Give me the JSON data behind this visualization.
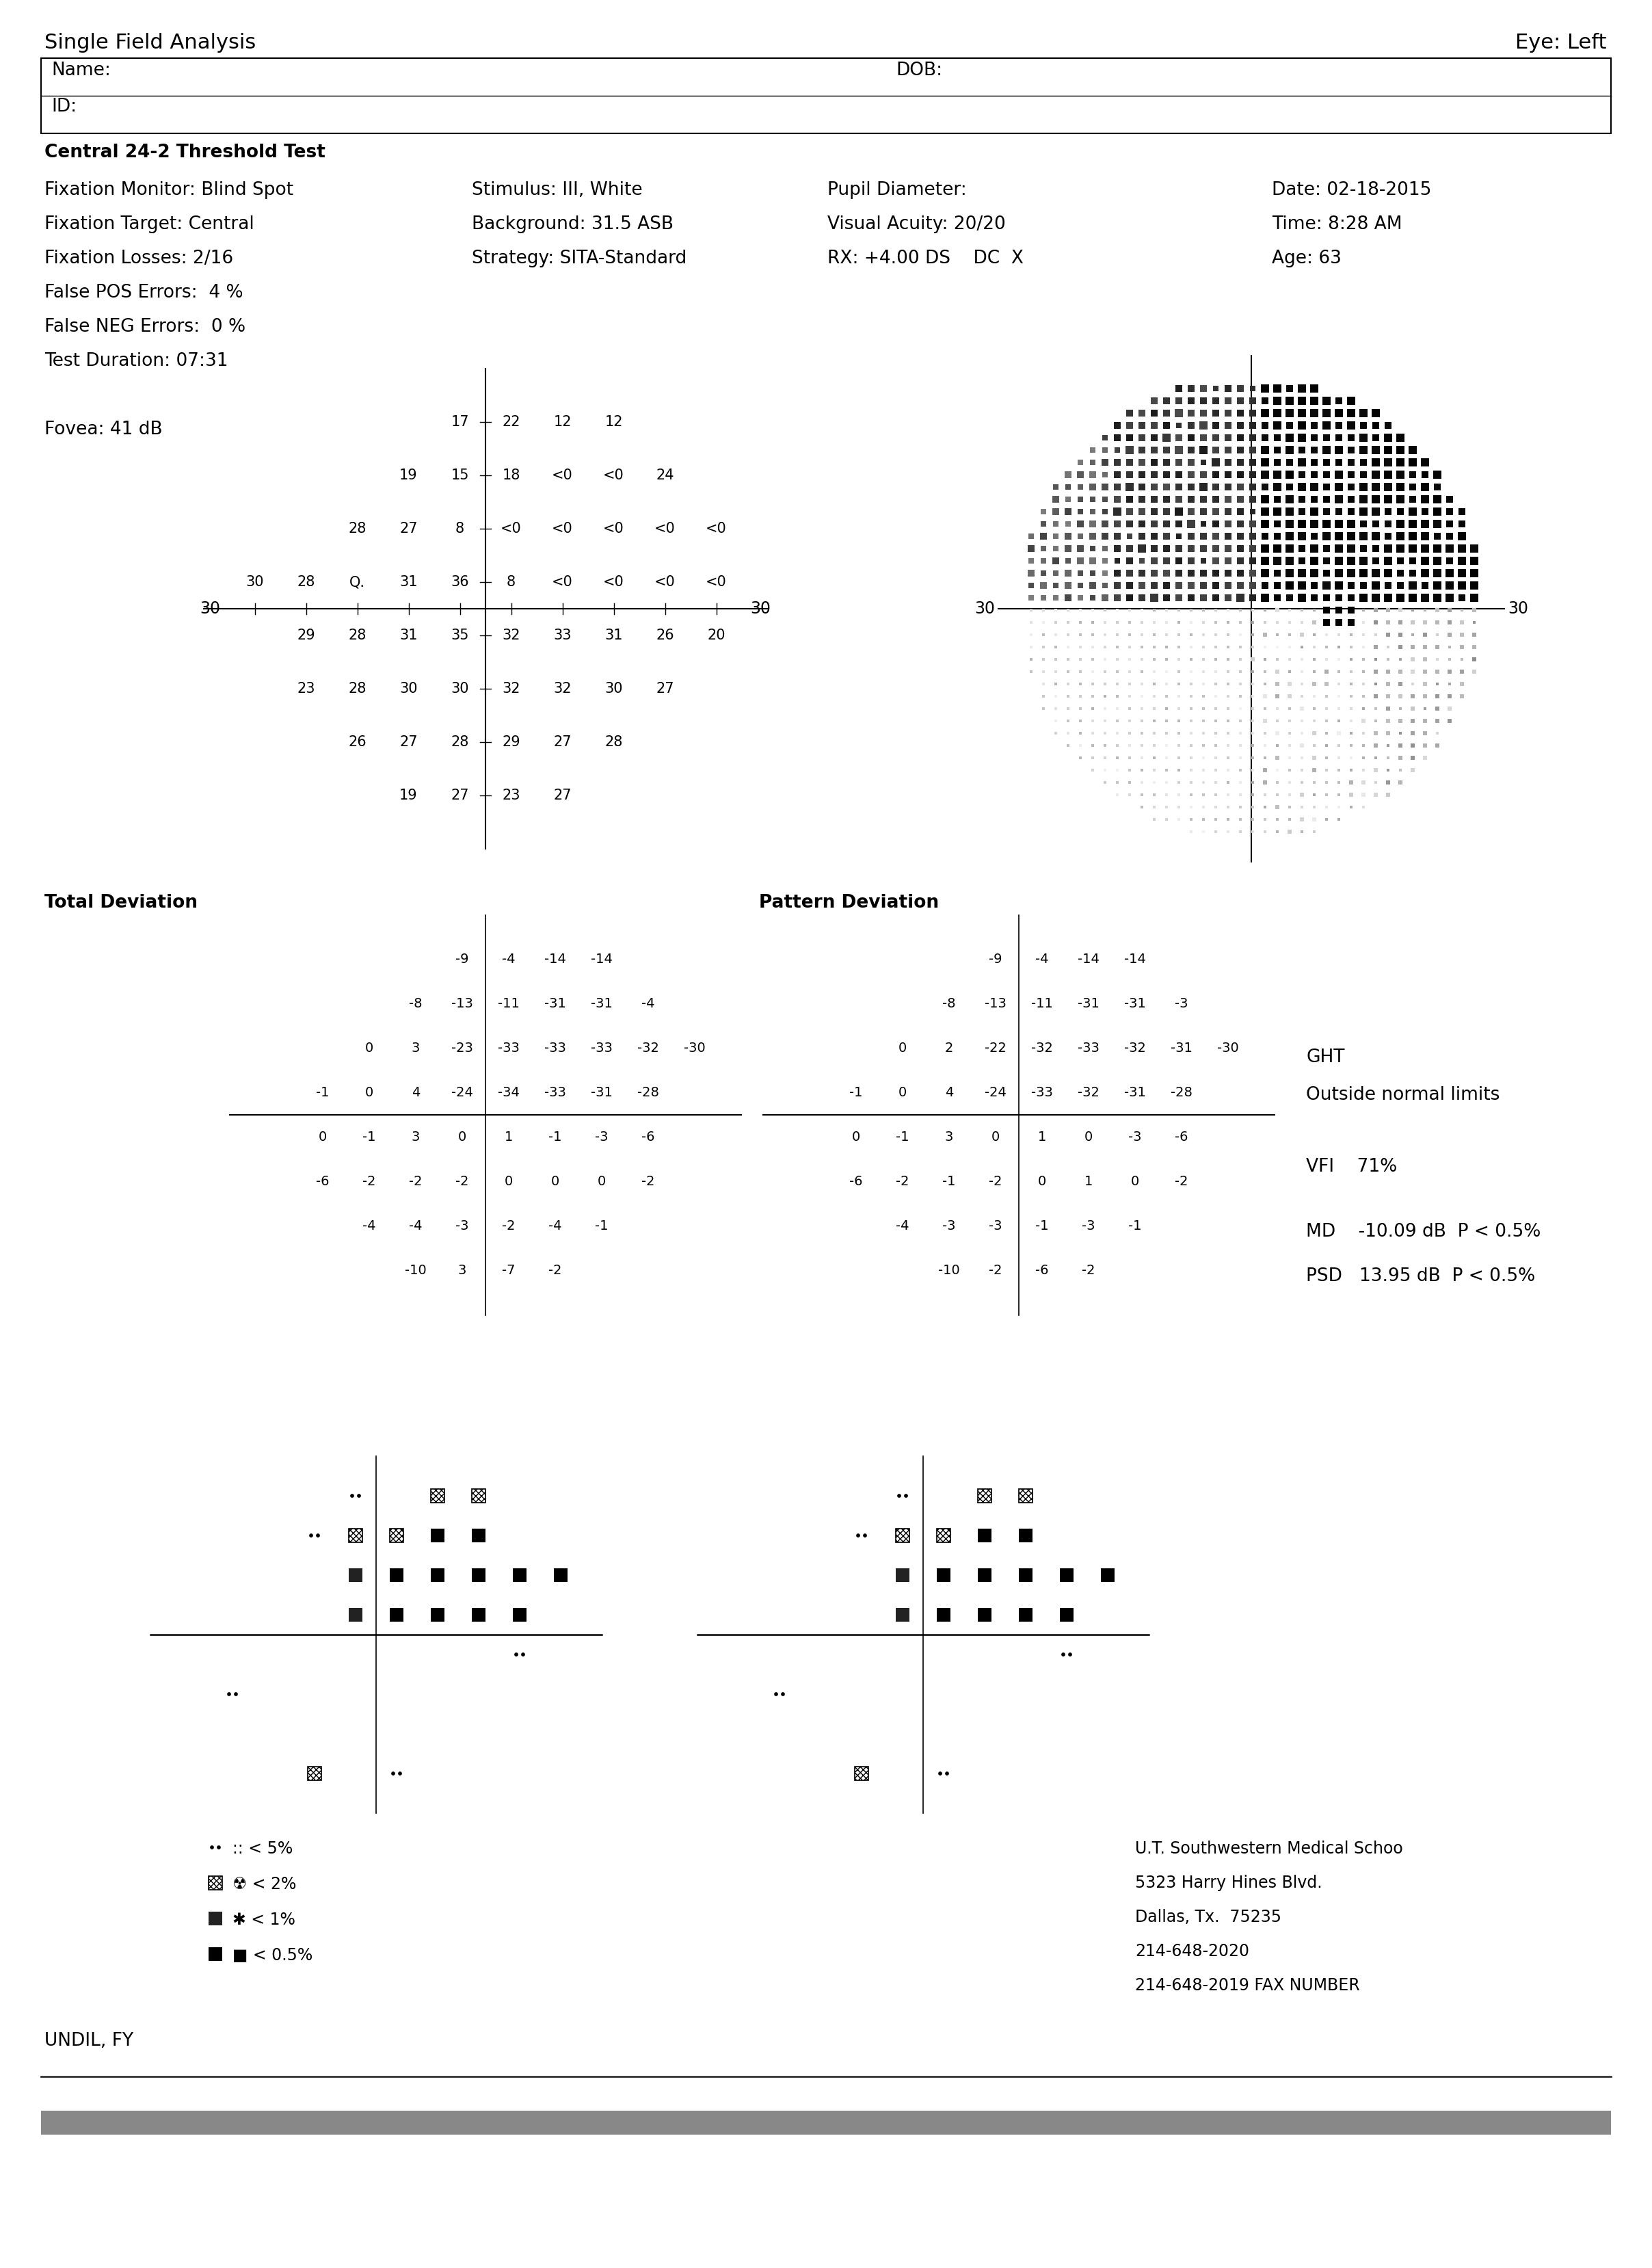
{
  "title_left": "Single Field Analysis",
  "title_right": "Eye: Left",
  "name_label": "Name:",
  "id_label": "ID:",
  "dob_label": "DOB:",
  "test_type": "Central 24-2 Threshold Test",
  "fix_monitor": "Fixation Monitor: Blind Spot",
  "fix_target": "Fixation Target: Central",
  "fix_losses": "Fixation Losses: 2/16",
  "false_pos": "False POS Errors:  4 %",
  "false_neg": "False NEG Errors:  0 %",
  "test_dur": "Test Duration: 07:31",
  "fovea": "Fovea: 41 dB",
  "stimulus": "Stimulus: III, White",
  "background": "Background: 31.5 ASB",
  "strategy": "Strategy: SITA-Standard",
  "pupil": "Pupil Diameter:",
  "visual_acuity": "Visual Acuity: 20/20",
  "rx": "RX: +4.00 DS    DC  X",
  "date": "Date: 02-18-2015",
  "time": "Time: 8:28 AM",
  "age": "Age: 63",
  "ght": "GHT",
  "ght_result": "Outside normal limits",
  "vfi": "VFI    71%",
  "md": "MD    -10.09 dB  P < 0.5%",
  "psd": "PSD   13.95 dB  P < 0.5%",
  "institution": "U.T. Southwestern Medical Schoo",
  "address1": "5323 Harry Hines Blvd.",
  "address2": "Dallas, Tx.  75235",
  "phone1": "214-648-2020",
  "phone2": "214-648-2019 FAX NUMBER",
  "patient_id": "UNDIL, FY",
  "thresh_rows": [
    [
      17,
      22,
      12,
      12
    ],
    [
      19,
      15,
      18,
      "<0",
      "<0",
      24
    ],
    [
      28,
      27,
      8,
      "<0",
      "<0",
      "<0",
      "<0",
      "<0"
    ],
    [
      30,
      28,
      "Q.",
      31,
      36,
      8,
      "<0",
      "<0",
      "<0",
      "<0"
    ],
    [
      29,
      28,
      31,
      35,
      32,
      33,
      31,
      26,
      20
    ],
    [
      23,
      28,
      30,
      30,
      32,
      32,
      30,
      27
    ],
    [
      26,
      27,
      28,
      29,
      27,
      28
    ],
    [
      19,
      27,
      23,
      27
    ]
  ],
  "thresh_cols": [
    [
      4,
      5,
      6,
      7
    ],
    [
      3,
      4,
      5,
      6,
      7,
      8
    ],
    [
      2,
      3,
      4,
      5,
      6,
      7,
      8,
      9
    ],
    [
      0,
      1,
      2,
      3,
      4,
      5,
      6,
      7,
      8,
      9
    ],
    [
      1,
      2,
      3,
      4,
      5,
      6,
      7,
      8,
      9
    ],
    [
      1,
      2,
      3,
      4,
      5,
      6,
      7,
      8
    ],
    [
      2,
      3,
      4,
      5,
      6,
      7
    ],
    [
      3,
      4,
      5,
      6
    ]
  ],
  "td_rows": [
    [
      -9,
      -4,
      -14,
      -14
    ],
    [
      -8,
      -13,
      -11,
      -31,
      -31,
      -4
    ],
    [
      0,
      3,
      -23,
      -33,
      -33,
      -33,
      -32,
      -30
    ],
    [
      -1,
      0,
      4,
      -24,
      -34,
      -33,
      -31,
      -28
    ],
    [
      0,
      -1,
      3,
      0,
      1,
      -1,
      -3,
      -6
    ],
    [
      -6,
      -2,
      -2,
      -2,
      0,
      0,
      0,
      -2
    ],
    [
      -4,
      -4,
      -3,
      -2,
      -4,
      -1
    ],
    [
      -10,
      3,
      -7,
      -2
    ]
  ],
  "pd_rows": [
    [
      -9,
      -4,
      -14,
      -14
    ],
    [
      -8,
      -13,
      -11,
      -31,
      -31,
      -3
    ],
    [
      0,
      2,
      -22,
      -32,
      -33,
      -32,
      -31,
      -30
    ],
    [
      -1,
      0,
      4,
      -24,
      -33,
      -32,
      -31,
      -28
    ],
    [
      0,
      -1,
      3,
      0,
      1,
      0,
      -3,
      -6
    ],
    [
      -6,
      -2,
      -1,
      -2,
      0,
      1,
      0,
      -2
    ],
    [
      -4,
      -3,
      -3,
      -1,
      -3,
      -1
    ],
    [
      -10,
      -2,
      -6,
      -2
    ]
  ],
  "dev_cols": [
    [
      4,
      5,
      6,
      7
    ],
    [
      3,
      4,
      5,
      6,
      7,
      8
    ],
    [
      2,
      3,
      4,
      5,
      6,
      7,
      8,
      9
    ],
    [
      1,
      2,
      3,
      4,
      5,
      6,
      7,
      8
    ],
    [
      1,
      2,
      3,
      4,
      5,
      6,
      7,
      8
    ],
    [
      1,
      2,
      3,
      4,
      5,
      6,
      7,
      8
    ],
    [
      2,
      3,
      4,
      5,
      6,
      7
    ],
    [
      3,
      4,
      5,
      6
    ]
  ]
}
